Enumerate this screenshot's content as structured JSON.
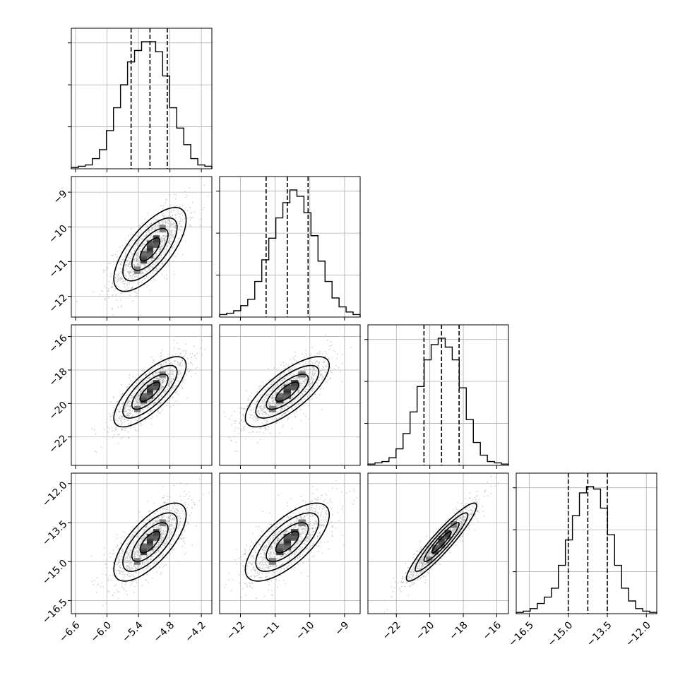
{
  "chart_data": {
    "type": "corner",
    "grid": true,
    "params": [
      {
        "range": [
          -6.68,
          -4.0
        ],
        "ticks": [
          -6.6,
          -6.0,
          -5.4,
          -4.8,
          -4.2
        ],
        "tick_labels": [
          "−6.6",
          "−6.0",
          "−5.4",
          "−4.8",
          "−4.2"
        ],
        "quantiles": [
          -5.54,
          -5.18,
          -4.85
        ],
        "hist_edges_start": -6.68,
        "hist_bin_width": 0.134,
        "hist_counts": [
          1,
          2,
          3,
          8,
          15,
          30,
          48,
          66,
          84,
          93,
          100,
          100,
          92,
          73,
          48,
          32,
          19,
          8,
          3,
          2
        ]
      },
      {
        "range": [
          -12.6,
          -8.55
        ],
        "ticks": [
          -12,
          -11,
          -10,
          -9
        ],
        "tick_labels": [
          "−12",
          "−11",
          "−10",
          "−9"
        ],
        "quantiles": [
          -11.26,
          -10.65,
          -10.05
        ],
        "hist_edges_start": -12.6,
        "hist_bin_width": 0.2025,
        "hist_counts": [
          2,
          3,
          5,
          9,
          14,
          28,
          45,
          62,
          78,
          90,
          100,
          95,
          82,
          64,
          44,
          28,
          15,
          8,
          4,
          2
        ]
      },
      {
        "range": [
          -23.7,
          -15.3
        ],
        "ticks": [
          -22,
          -20,
          -18,
          -16
        ],
        "tick_labels": [
          "−22",
          "−20",
          "−18",
          "−16"
        ],
        "quantiles": [
          -20.35,
          -19.3,
          -18.25
        ],
        "hist_edges_start": -23.7,
        "hist_bin_width": 0.42,
        "hist_counts": [
          1,
          2,
          3,
          6,
          13,
          25,
          42,
          62,
          83,
          95,
          100,
          93,
          83,
          61,
          36,
          18,
          8,
          3,
          2,
          1
        ]
      },
      {
        "range": [
          -17.0,
          -11.6
        ],
        "ticks": [
          -16.5,
          -15.0,
          -13.5,
          -12.0
        ],
        "tick_labels": [
          "−16.5",
          "−15.0",
          "−13.5",
          "−12.0"
        ],
        "quantiles": [
          -15.0,
          -14.25,
          -13.5
        ],
        "hist_edges_start": -17.0,
        "hist_bin_width": 0.27,
        "hist_counts": [
          1,
          2,
          4,
          8,
          13,
          20,
          38,
          58,
          77,
          95,
          100,
          98,
          83,
          62,
          38,
          20,
          10,
          4,
          2,
          1
        ]
      }
    ],
    "correlations": [
      [
        1.0,
        0.7,
        0.75,
        0.7
      ],
      [
        0.7,
        1.0,
        0.75,
        0.7
      ],
      [
        0.75,
        0.75,
        1.0,
        0.93
      ],
      [
        0.7,
        0.7,
        0.93,
        1.0
      ]
    ]
  },
  "colors": {
    "line": "#000000",
    "grid": "#b0b0b0",
    "scatter": "#a9a9a9"
  }
}
